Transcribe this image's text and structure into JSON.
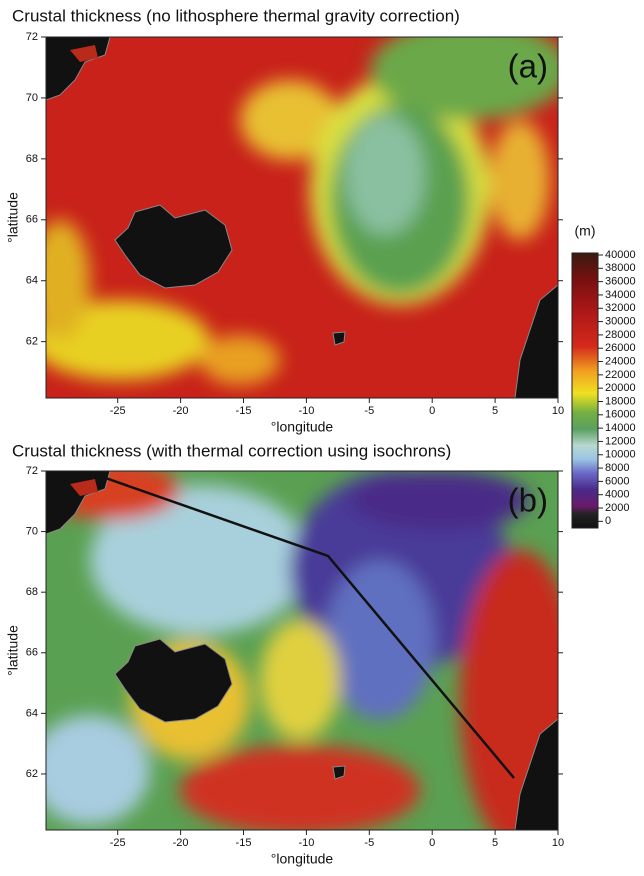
{
  "panels": [
    {
      "title": "Crustal thickness (no lithosphere thermal gravity correction)",
      "label": "(a)",
      "x_label": "°longitude",
      "y_label": "°latitude",
      "xlim": [
        -30.7,
        10
      ],
      "ylim": [
        60.15,
        72
      ],
      "xticks": [
        -25,
        -20,
        -15,
        -10,
        -5,
        0,
        5,
        10
      ],
      "yticks": [
        62,
        64,
        66,
        68,
        70,
        72
      ]
    },
    {
      "title": "Crustal thickness (with thermal correction using isochrons)",
      "label": "(b)",
      "x_label": "°longitude",
      "y_label": "°latitude",
      "xlim": [
        -30.7,
        10
      ],
      "ylim": [
        60.15,
        72
      ],
      "xticks": [
        -25,
        -20,
        -15,
        -10,
        -5,
        0,
        5,
        10
      ],
      "yticks": [
        62,
        64,
        66,
        68,
        70,
        72
      ]
    }
  ],
  "colorbar": {
    "unit": "(m)",
    "lim": [
      -1000,
      40300
    ],
    "ticks": [
      0,
      2000,
      4000,
      6000,
      8000,
      10000,
      12000,
      14000,
      16000,
      18000,
      20000,
      22000,
      24000,
      26000,
      28000,
      30000,
      32000,
      34000,
      36000,
      38000,
      40000
    ]
  }
}
